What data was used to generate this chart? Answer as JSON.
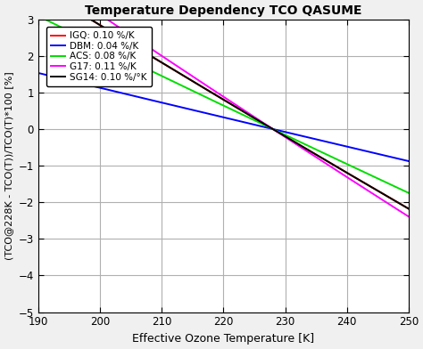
{
  "title": "Temperature Dependency TCO QASUME",
  "xlabel": "Effective Ozone Temperature [K]",
  "ylabel": "(TCO@228K - TCO(T))/TCO(T)*100 [%]",
  "xlim": [
    190,
    250
  ],
  "ylim": [
    -5,
    3
  ],
  "xticks": [
    190,
    200,
    210,
    220,
    230,
    240,
    250
  ],
  "yticks": [
    -5,
    -4,
    -3,
    -2,
    -1,
    0,
    1,
    2,
    3
  ],
  "T_ref": 228,
  "lines": [
    {
      "name": "IGQ",
      "rate": 0.001,
      "color": "#FF0000",
      "lw": 1.4
    },
    {
      "name": "DBM",
      "rate": 0.0004,
      "color": "#0000FF",
      "lw": 1.4
    },
    {
      "name": "ACS",
      "rate": 0.0008,
      "color": "#00DD00",
      "lw": 1.4
    },
    {
      "name": "G17",
      "rate": 0.0011,
      "color": "#FF00FF",
      "lw": 1.4
    },
    {
      "name": "SG14",
      "rate": 0.001,
      "color": "#000000",
      "lw": 1.4
    }
  ],
  "legend_labels": [
    "IGQ: 0.10 %/K",
    "DBM: 0.04 %/K",
    "ACS: 0.08 %/K",
    "G17: 0.11 %/K",
    "SG14: 0.10 %/°K"
  ],
  "background_color": "#ffffff",
  "grid_color": "#b0b0b0",
  "fig_bg": "#f0f0f0"
}
